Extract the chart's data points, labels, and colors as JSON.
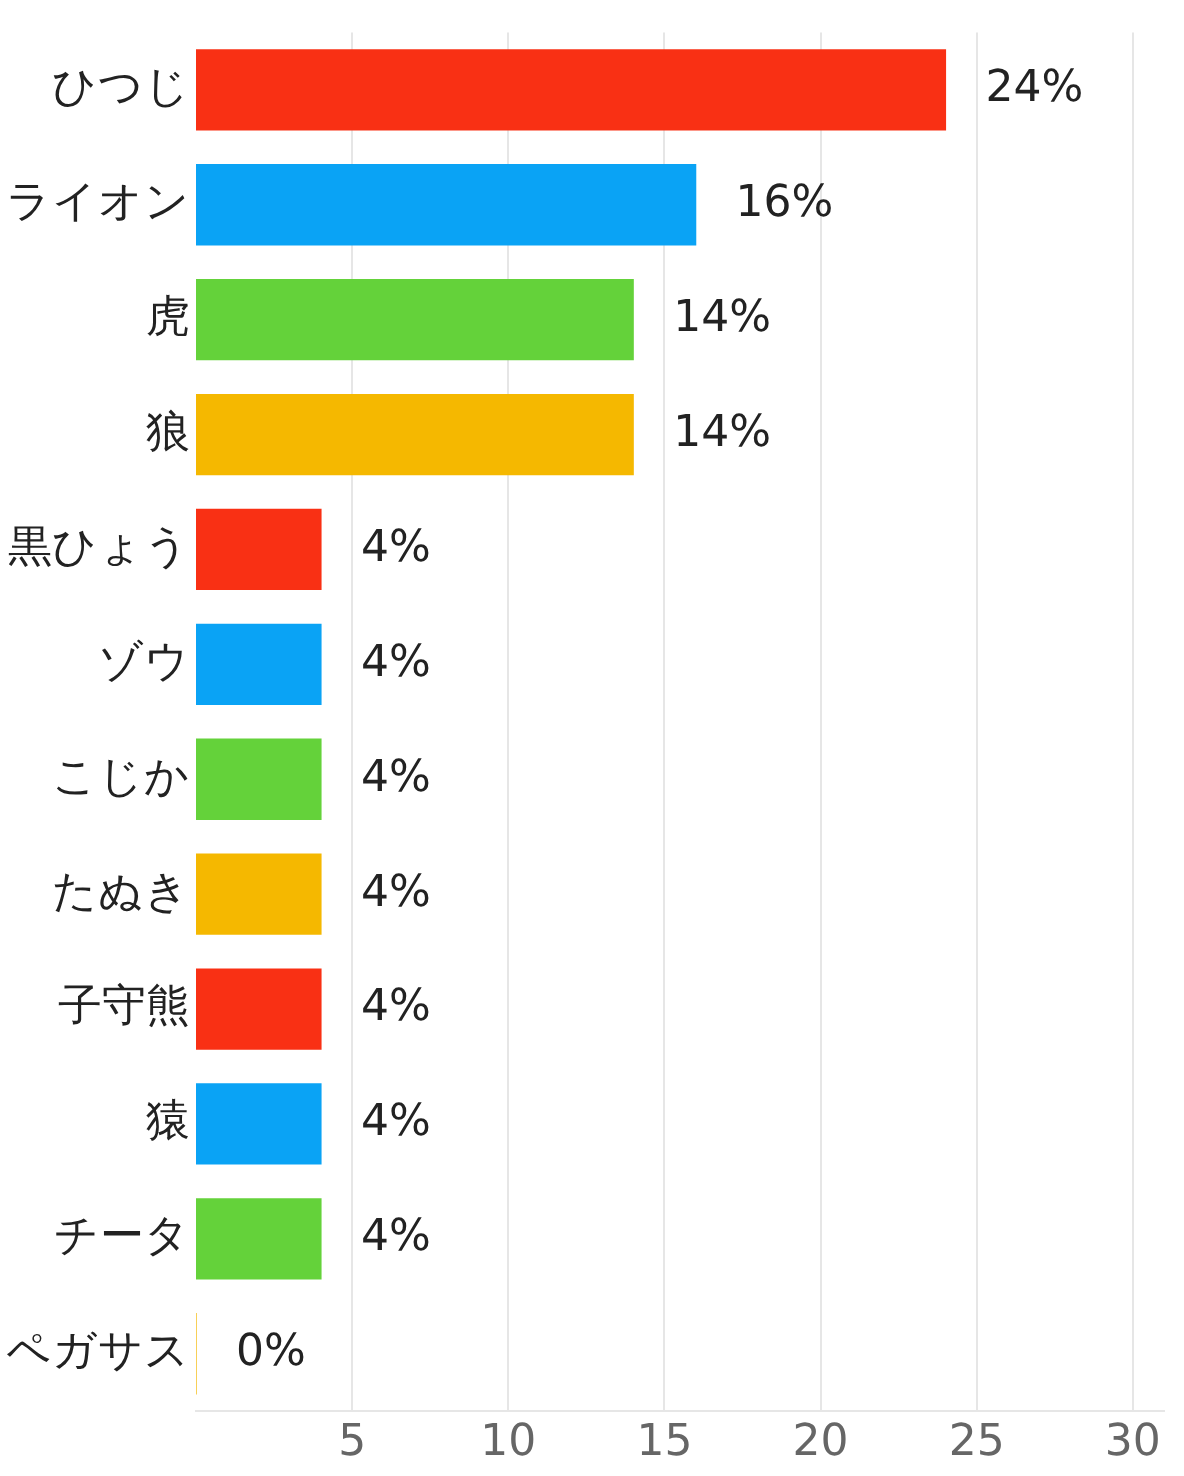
{
  "chart_data": {
    "type": "bar",
    "orientation": "horizontal",
    "categories": [
      "ひつじ",
      "ライオン",
      "虎",
      "狼",
      "黒ひょう",
      "ゾウ",
      "こじか",
      "たぬき",
      "子守熊",
      "猿",
      "チータ",
      "ペガサス"
    ],
    "values": [
      24,
      16,
      14,
      14,
      4,
      4,
      4,
      4,
      4,
      4,
      4,
      0
    ],
    "colors": [
      "#f93014",
      "#0aa3f5",
      "#64d23a",
      "#f5b800",
      "#f93014",
      "#0aa3f5",
      "#64d23a",
      "#f5b800",
      "#f93014",
      "#0aa3f5",
      "#64d23a",
      "#f5b800"
    ],
    "value_labels": [
      "24%",
      "16%",
      "14%",
      "14%",
      "4%",
      "4%",
      "4%",
      "4%",
      "4%",
      "4%",
      "4%",
      "0%"
    ],
    "xlim": [
      0,
      31
    ],
    "xticks": [
      5,
      10,
      15,
      20,
      25,
      30
    ],
    "grid": "x"
  }
}
